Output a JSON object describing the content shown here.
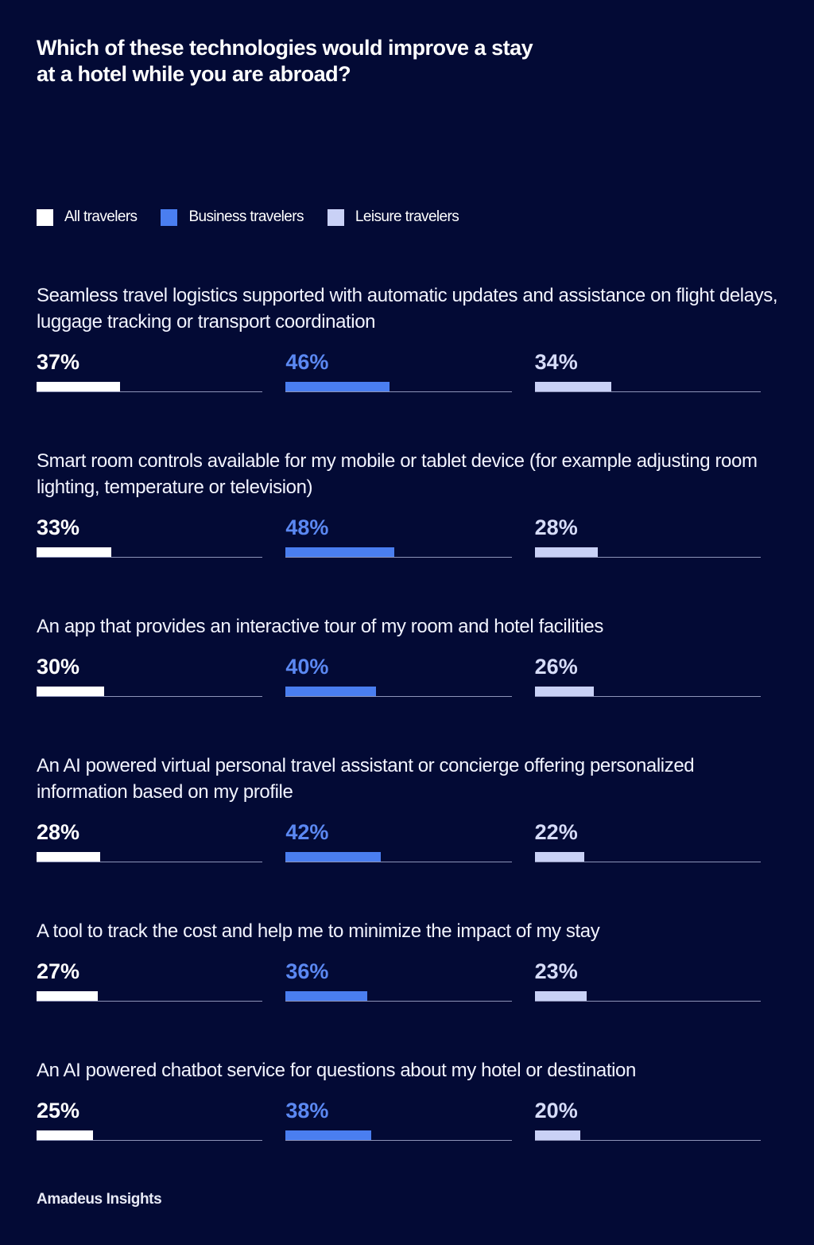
{
  "chart_data": {
    "type": "bar",
    "title": "Which of these technologies would improve a stay at a hotel while you are abroad?",
    "legend_placement": "top-left",
    "unit": "%",
    "xlim": [
      0,
      100
    ],
    "categories": [
      "Seamless travel logistics supported with automatic updates and assistance on flight delays, luggage tracking or transport coordination",
      "Smart room controls available for my mobile or tablet device (for example adjusting room lighting, temperature or television)",
      "An app that provides an interactive tour of my room and hotel facilities",
      "An AI powered virtual personal travel assistant or concierge offering personalized information based on my profile",
      "A tool to track the cost and help me to minimize the impact of my stay",
      "An AI powered chatbot service for questions about my hotel or destination"
    ],
    "series": [
      {
        "name": "All travelers",
        "color": "#ffffff",
        "text_color": "#ffffff",
        "values": [
          37,
          33,
          30,
          28,
          27,
          25
        ]
      },
      {
        "name": "Business travelers",
        "color": "#4a7ef0",
        "text_color": "#5b88f2",
        "values": [
          46,
          48,
          40,
          42,
          36,
          38
        ]
      },
      {
        "name": "Leisure travelers",
        "color": "#c9d1f6",
        "text_color": "#d6dcf8",
        "values": [
          34,
          28,
          26,
          22,
          23,
          20
        ]
      }
    ]
  },
  "source": "Amadeus Insights"
}
